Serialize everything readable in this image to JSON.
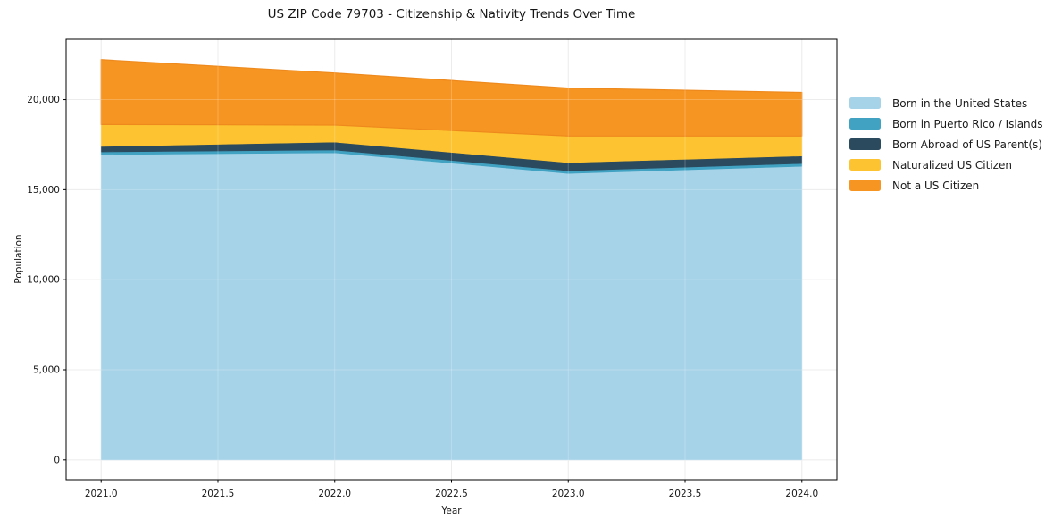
{
  "chart_data": {
    "type": "area",
    "stacked": true,
    "title": "US ZIP Code 79703 - Citizenship & Nativity Trends Over Time",
    "xlabel": "Year",
    "ylabel": "Population",
    "x": [
      2021,
      2022,
      2023,
      2024
    ],
    "series": [
      {
        "name": "Born in the United States",
        "color": "#A6D3E8",
        "values": [
          16950,
          17050,
          15900,
          16300
        ]
      },
      {
        "name": "Born in Puerto Rico / Islands",
        "color": "#41A2C2",
        "values": [
          150,
          150,
          150,
          150
        ]
      },
      {
        "name": "Born Abroad of US Parent(s)",
        "color": "#2B4A5E",
        "values": [
          300,
          440,
          450,
          420
        ]
      },
      {
        "name": "Naturalized US Citizen",
        "color": "#FDC330",
        "values": [
          1220,
          950,
          1480,
          1110
        ]
      },
      {
        "name": "Not a US Citizen",
        "color": "#F79522",
        "values": [
          3600,
          2890,
          2660,
          2420
        ],
        "edge_color": "#EE8A1D"
      }
    ],
    "xticks": [
      2021.0,
      2021.5,
      2022.0,
      2022.5,
      2023.0,
      2023.5,
      2024.0
    ],
    "xtick_labels": [
      "2021.0",
      "2021.5",
      "2022.0",
      "2022.5",
      "2023.0",
      "2023.5",
      "2024.0"
    ],
    "yticks": [
      0,
      5000,
      10000,
      15000,
      20000
    ],
    "ytick_labels": [
      "0",
      "5,000",
      "10,000",
      "15,000",
      "20,000"
    ],
    "xlim": [
      2020.85,
      2024.15
    ],
    "ylim": [
      -1100,
      23350
    ],
    "grid": true,
    "grid_color": "#E7E7E7",
    "spine_color": "#000000",
    "legend_position": "right"
  }
}
